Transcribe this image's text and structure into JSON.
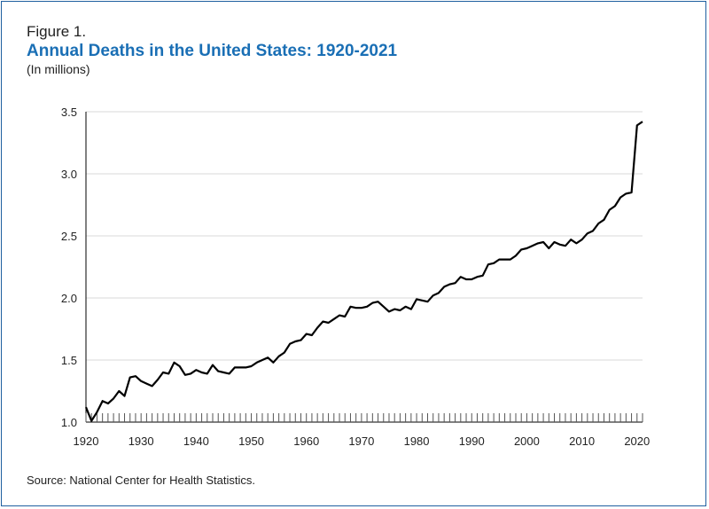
{
  "figure_label": "Figure 1.",
  "title": "Annual Deaths in the United States: 1920-2021",
  "subtitle": "(In millions)",
  "source": "Source: National Center for Health Statistics.",
  "colors": {
    "title": "#1a6fb5",
    "line": "#000000",
    "grid": "#d9d9d9",
    "border": "#1f5fa0"
  },
  "chart_data": {
    "type": "line",
    "title": "Annual Deaths in the United States: 1920-2021",
    "subtitle": "(In millions)",
    "xlabel": "",
    "ylabel": "",
    "xlim": [
      1920,
      2021
    ],
    "ylim": [
      1.0,
      3.5
    ],
    "y_ticks": [
      1.0,
      1.5,
      2.0,
      2.5,
      3.0,
      3.5
    ],
    "y_tick_labels": [
      "1.0",
      "1.5",
      "2.0",
      "2.5",
      "3.0",
      "3.5"
    ],
    "x_ticks": [
      1920,
      1930,
      1940,
      1950,
      1960,
      1970,
      1980,
      1990,
      2000,
      2010,
      2020
    ],
    "x_tick_labels": [
      "1920",
      "1930",
      "1940",
      "1950",
      "1960",
      "1970",
      "1980",
      "1990",
      "2000",
      "2010",
      "2020"
    ],
    "grid": "horizontal",
    "series": [
      {
        "x": [
          1920,
          1921,
          1922,
          1923,
          1924,
          1925,
          1926,
          1927,
          1928,
          1929,
          1930,
          1931,
          1932,
          1933,
          1934,
          1935,
          1936,
          1937,
          1938,
          1939,
          1940,
          1941,
          1942,
          1943,
          1944,
          1945,
          1946,
          1947,
          1948,
          1949,
          1950,
          1951,
          1952,
          1953,
          1954,
          1955,
          1956,
          1957,
          1958,
          1959,
          1960,
          1961,
          1962,
          1963,
          1964,
          1965,
          1966,
          1967,
          1968,
          1969,
          1970,
          1971,
          1972,
          1973,
          1974,
          1975,
          1976,
          1977,
          1978,
          1979,
          1980,
          1981,
          1982,
          1983,
          1984,
          1985,
          1986,
          1987,
          1988,
          1989,
          1990,
          1991,
          1992,
          1993,
          1994,
          1995,
          1996,
          1997,
          1998,
          1999,
          2000,
          2001,
          2002,
          2003,
          2004,
          2005,
          2006,
          2007,
          2008,
          2009,
          2010,
          2011,
          2012,
          2013,
          2014,
          2015,
          2016,
          2017,
          2018,
          2019,
          2020,
          2021
        ],
        "values": [
          1.12,
          1.01,
          1.08,
          1.17,
          1.15,
          1.19,
          1.25,
          1.21,
          1.36,
          1.37,
          1.33,
          1.31,
          1.29,
          1.34,
          1.4,
          1.39,
          1.48,
          1.45,
          1.38,
          1.39,
          1.42,
          1.4,
          1.39,
          1.46,
          1.41,
          1.4,
          1.39,
          1.44,
          1.44,
          1.44,
          1.45,
          1.48,
          1.5,
          1.52,
          1.48,
          1.53,
          1.56,
          1.63,
          1.65,
          1.66,
          1.71,
          1.7,
          1.76,
          1.81,
          1.8,
          1.83,
          1.86,
          1.85,
          1.93,
          1.92,
          1.92,
          1.93,
          1.96,
          1.97,
          1.93,
          1.89,
          1.91,
          1.9,
          1.93,
          1.91,
          1.99,
          1.98,
          1.97,
          2.02,
          2.04,
          2.09,
          2.11,
          2.12,
          2.17,
          2.15,
          2.15,
          2.17,
          2.18,
          2.27,
          2.28,
          2.31,
          2.31,
          2.31,
          2.34,
          2.39,
          2.4,
          2.42,
          2.44,
          2.45,
          2.4,
          2.45,
          2.43,
          2.42,
          2.47,
          2.44,
          2.47,
          2.52,
          2.54,
          2.6,
          2.63,
          2.71,
          2.74,
          2.81,
          2.84,
          2.85,
          3.39,
          3.42
        ]
      }
    ]
  }
}
